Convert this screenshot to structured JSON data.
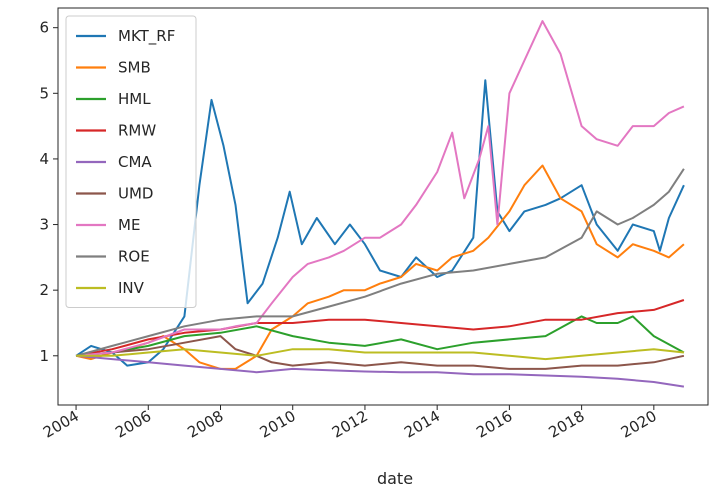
{
  "chart_data": {
    "type": "line",
    "title": "",
    "xlabel": "date",
    "ylabel": "",
    "xlim": [
      "2003-07-01",
      "2021-07-01"
    ],
    "ylim": [
      0.25,
      6.3
    ],
    "x_ticks": [
      "2004",
      "2006",
      "2008",
      "2010",
      "2012",
      "2014",
      "2016",
      "2018",
      "2020"
    ],
    "y_ticks": [
      "1",
      "2",
      "3",
      "4",
      "5",
      "6"
    ],
    "grid": false,
    "legend_position": "upper-left",
    "series": [
      {
        "name": "MKT_RF",
        "color": "#1f77b4",
        "points": [
          [
            "2004-01-01",
            1.0
          ],
          [
            "2004-06-01",
            1.15
          ],
          [
            "2005-01-01",
            1.05
          ],
          [
            "2005-06-01",
            0.85
          ],
          [
            "2006-01-01",
            0.9
          ],
          [
            "2006-06-01",
            1.1
          ],
          [
            "2007-01-01",
            1.6
          ],
          [
            "2007-06-01",
            3.6
          ],
          [
            "2007-10-01",
            4.9
          ],
          [
            "2008-02-01",
            4.2
          ],
          [
            "2008-06-01",
            3.3
          ],
          [
            "2008-10-01",
            1.8
          ],
          [
            "2009-03-01",
            2.1
          ],
          [
            "2009-08-01",
            2.8
          ],
          [
            "2009-12-01",
            3.5
          ],
          [
            "2010-04-01",
            2.7
          ],
          [
            "2010-09-01",
            3.1
          ],
          [
            "2011-03-01",
            2.7
          ],
          [
            "2011-08-01",
            3.0
          ],
          [
            "2012-01-01",
            2.7
          ],
          [
            "2012-06-01",
            2.3
          ],
          [
            "2013-01-01",
            2.2
          ],
          [
            "2013-06-01",
            2.5
          ],
          [
            "2014-01-01",
            2.2
          ],
          [
            "2014-06-01",
            2.3
          ],
          [
            "2015-01-01",
            2.8
          ],
          [
            "2015-05-01",
            5.2
          ],
          [
            "2015-09-01",
            3.2
          ],
          [
            "2016-01-01",
            2.9
          ],
          [
            "2016-06-01",
            3.2
          ],
          [
            "2017-01-01",
            3.3
          ],
          [
            "2017-06-01",
            3.4
          ],
          [
            "2018-01-01",
            3.6
          ],
          [
            "2018-06-01",
            3.0
          ],
          [
            "2019-01-01",
            2.6
          ],
          [
            "2019-06-01",
            3.0
          ],
          [
            "2020-01-01",
            2.9
          ],
          [
            "2020-03-01",
            2.6
          ],
          [
            "2020-06-01",
            3.1
          ],
          [
            "2020-11-01",
            3.6
          ]
        ]
      },
      {
        "name": "SMB",
        "color": "#ff7f0e",
        "points": [
          [
            "2004-01-01",
            1.0
          ],
          [
            "2004-06-01",
            0.95
          ],
          [
            "2005-01-01",
            1.05
          ],
          [
            "2005-06-01",
            1.1
          ],
          [
            "2006-01-01",
            1.2
          ],
          [
            "2006-06-01",
            1.3
          ],
          [
            "2007-01-01",
            1.1
          ],
          [
            "2007-06-01",
            0.9
          ],
          [
            "2008-01-01",
            0.8
          ],
          [
            "2008-06-01",
            0.8
          ],
          [
            "2009-01-01",
            1.0
          ],
          [
            "2009-06-01",
            1.4
          ],
          [
            "2010-01-01",
            1.6
          ],
          [
            "2010-06-01",
            1.8
          ],
          [
            "2011-01-01",
            1.9
          ],
          [
            "2011-06-01",
            2.0
          ],
          [
            "2012-01-01",
            2.0
          ],
          [
            "2012-06-01",
            2.1
          ],
          [
            "2013-01-01",
            2.2
          ],
          [
            "2013-06-01",
            2.4
          ],
          [
            "2014-01-01",
            2.3
          ],
          [
            "2014-06-01",
            2.5
          ],
          [
            "2015-01-01",
            2.6
          ],
          [
            "2015-06-01",
            2.8
          ],
          [
            "2016-01-01",
            3.2
          ],
          [
            "2016-06-01",
            3.6
          ],
          [
            "2016-12-01",
            3.9
          ],
          [
            "2017-06-01",
            3.4
          ],
          [
            "2018-01-01",
            3.2
          ],
          [
            "2018-06-01",
            2.7
          ],
          [
            "2019-01-01",
            2.5
          ],
          [
            "2019-06-01",
            2.7
          ],
          [
            "2020-01-01",
            2.6
          ],
          [
            "2020-06-01",
            2.5
          ],
          [
            "2020-11-01",
            2.7
          ]
        ]
      },
      {
        "name": "HML",
        "color": "#2ca02c",
        "points": [
          [
            "2004-01-01",
            1.0
          ],
          [
            "2005-01-01",
            1.05
          ],
          [
            "2006-01-01",
            1.15
          ],
          [
            "2007-01-01",
            1.3
          ],
          [
            "2008-01-01",
            1.35
          ],
          [
            "2009-01-01",
            1.45
          ],
          [
            "2010-01-01",
            1.3
          ],
          [
            "2011-01-01",
            1.2
          ],
          [
            "2012-01-01",
            1.15
          ],
          [
            "2013-01-01",
            1.25
          ],
          [
            "2014-01-01",
            1.1
          ],
          [
            "2015-01-01",
            1.2
          ],
          [
            "2016-01-01",
            1.25
          ],
          [
            "2017-01-01",
            1.3
          ],
          [
            "2018-01-01",
            1.6
          ],
          [
            "2018-06-01",
            1.5
          ],
          [
            "2019-01-01",
            1.5
          ],
          [
            "2019-06-01",
            1.6
          ],
          [
            "2020-01-01",
            1.3
          ],
          [
            "2020-11-01",
            1.05
          ]
        ]
      },
      {
        "name": "RMW",
        "color": "#d62728",
        "points": [
          [
            "2004-01-01",
            1.0
          ],
          [
            "2005-01-01",
            1.1
          ],
          [
            "2006-01-01",
            1.25
          ],
          [
            "2007-01-01",
            1.35
          ],
          [
            "2008-01-01",
            1.4
          ],
          [
            "2009-01-01",
            1.5
          ],
          [
            "2010-01-01",
            1.5
          ],
          [
            "2011-01-01",
            1.55
          ],
          [
            "2012-01-01",
            1.55
          ],
          [
            "2013-01-01",
            1.5
          ],
          [
            "2014-01-01",
            1.45
          ],
          [
            "2015-01-01",
            1.4
          ],
          [
            "2016-01-01",
            1.45
          ],
          [
            "2017-01-01",
            1.55
          ],
          [
            "2018-01-01",
            1.55
          ],
          [
            "2019-01-01",
            1.65
          ],
          [
            "2020-01-01",
            1.7
          ],
          [
            "2020-11-01",
            1.85
          ]
        ]
      },
      {
        "name": "CMA",
        "color": "#9467bd",
        "points": [
          [
            "2004-01-01",
            1.0
          ],
          [
            "2005-01-01",
            0.95
          ],
          [
            "2006-01-01",
            0.9
          ],
          [
            "2007-01-01",
            0.85
          ],
          [
            "2008-01-01",
            0.8
          ],
          [
            "2009-01-01",
            0.75
          ],
          [
            "2010-01-01",
            0.8
          ],
          [
            "2011-01-01",
            0.78
          ],
          [
            "2012-01-01",
            0.76
          ],
          [
            "2013-01-01",
            0.75
          ],
          [
            "2014-01-01",
            0.75
          ],
          [
            "2015-01-01",
            0.72
          ],
          [
            "2016-01-01",
            0.72
          ],
          [
            "2017-01-01",
            0.7
          ],
          [
            "2018-01-01",
            0.68
          ],
          [
            "2019-01-01",
            0.65
          ],
          [
            "2020-01-01",
            0.6
          ],
          [
            "2020-11-01",
            0.53
          ]
        ]
      },
      {
        "name": "UMD",
        "color": "#8c564b",
        "points": [
          [
            "2004-01-01",
            1.0
          ],
          [
            "2005-01-01",
            1.05
          ],
          [
            "2006-01-01",
            1.1
          ],
          [
            "2007-01-01",
            1.2
          ],
          [
            "2008-01-01",
            1.3
          ],
          [
            "2008-06-01",
            1.1
          ],
          [
            "2009-01-01",
            1.0
          ],
          [
            "2009-06-01",
            0.9
          ],
          [
            "2010-01-01",
            0.85
          ],
          [
            "2011-01-01",
            0.9
          ],
          [
            "2012-01-01",
            0.85
          ],
          [
            "2013-01-01",
            0.9
          ],
          [
            "2014-01-01",
            0.85
          ],
          [
            "2015-01-01",
            0.85
          ],
          [
            "2016-01-01",
            0.8
          ],
          [
            "2017-01-01",
            0.8
          ],
          [
            "2018-01-01",
            0.85
          ],
          [
            "2019-01-01",
            0.85
          ],
          [
            "2020-01-01",
            0.9
          ],
          [
            "2020-11-01",
            1.0
          ]
        ]
      },
      {
        "name": "ME",
        "color": "#e377c2",
        "points": [
          [
            "2004-01-01",
            1.0
          ],
          [
            "2005-01-01",
            1.05
          ],
          [
            "2006-01-01",
            1.2
          ],
          [
            "2007-01-01",
            1.4
          ],
          [
            "2008-01-01",
            1.4
          ],
          [
            "2008-06-01",
            1.45
          ],
          [
            "2009-01-01",
            1.5
          ],
          [
            "2009-06-01",
            1.8
          ],
          [
            "2010-01-01",
            2.2
          ],
          [
            "2010-06-01",
            2.4
          ],
          [
            "2011-01-01",
            2.5
          ],
          [
            "2011-06-01",
            2.6
          ],
          [
            "2012-01-01",
            2.8
          ],
          [
            "2012-06-01",
            2.8
          ],
          [
            "2013-01-01",
            3.0
          ],
          [
            "2013-06-01",
            3.3
          ],
          [
            "2014-01-01",
            3.8
          ],
          [
            "2014-06-01",
            4.4
          ],
          [
            "2014-10-01",
            3.4
          ],
          [
            "2015-03-01",
            4.0
          ],
          [
            "2015-06-01",
            4.5
          ],
          [
            "2015-09-01",
            3.0
          ],
          [
            "2016-01-01",
            5.0
          ],
          [
            "2016-06-01",
            5.5
          ],
          [
            "2016-12-01",
            6.1
          ],
          [
            "2017-06-01",
            5.6
          ],
          [
            "2018-01-01",
            4.5
          ],
          [
            "2018-06-01",
            4.3
          ],
          [
            "2019-01-01",
            4.2
          ],
          [
            "2019-06-01",
            4.5
          ],
          [
            "2020-01-01",
            4.5
          ],
          [
            "2020-06-01",
            4.7
          ],
          [
            "2020-11-01",
            4.8
          ]
        ]
      },
      {
        "name": "ROE",
        "color": "#7f7f7f",
        "points": [
          [
            "2004-01-01",
            1.0
          ],
          [
            "2005-01-01",
            1.15
          ],
          [
            "2006-01-01",
            1.3
          ],
          [
            "2007-01-01",
            1.45
          ],
          [
            "2008-01-01",
            1.55
          ],
          [
            "2009-01-01",
            1.6
          ],
          [
            "2010-01-01",
            1.6
          ],
          [
            "2011-01-01",
            1.75
          ],
          [
            "2012-01-01",
            1.9
          ],
          [
            "2013-01-01",
            2.1
          ],
          [
            "2014-01-01",
            2.25
          ],
          [
            "2015-01-01",
            2.3
          ],
          [
            "2016-01-01",
            2.4
          ],
          [
            "2017-01-01",
            2.5
          ],
          [
            "2018-01-01",
            2.8
          ],
          [
            "2018-06-01",
            3.2
          ],
          [
            "2019-01-01",
            3.0
          ],
          [
            "2019-06-01",
            3.1
          ],
          [
            "2020-01-01",
            3.3
          ],
          [
            "2020-06-01",
            3.5
          ],
          [
            "2020-11-01",
            3.85
          ]
        ]
      },
      {
        "name": "INV",
        "color": "#bcbd22",
        "points": [
          [
            "2004-01-01",
            1.0
          ],
          [
            "2005-01-01",
            1.0
          ],
          [
            "2006-01-01",
            1.05
          ],
          [
            "2007-01-01",
            1.1
          ],
          [
            "2008-01-01",
            1.05
          ],
          [
            "2009-01-01",
            1.0
          ],
          [
            "2010-01-01",
            1.1
          ],
          [
            "2011-01-01",
            1.1
          ],
          [
            "2012-01-01",
            1.05
          ],
          [
            "2013-01-01",
            1.05
          ],
          [
            "2014-01-01",
            1.05
          ],
          [
            "2015-01-01",
            1.05
          ],
          [
            "2016-01-01",
            1.0
          ],
          [
            "2017-01-01",
            0.95
          ],
          [
            "2018-01-01",
            1.0
          ],
          [
            "2019-01-01",
            1.05
          ],
          [
            "2020-01-01",
            1.1
          ],
          [
            "2020-11-01",
            1.05
          ]
        ]
      }
    ]
  }
}
